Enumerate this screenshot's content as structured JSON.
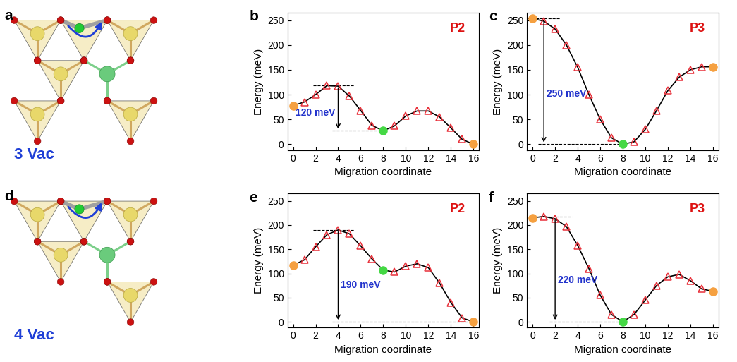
{
  "diagrams": [
    {
      "panel_label": "a",
      "label": "3 Vac"
    },
    {
      "panel_label": "d",
      "label": "4 Vac"
    }
  ],
  "chart_data": [
    {
      "panel_label": "b",
      "type": "line",
      "title": "P2",
      "x_label": "Migration coordinate",
      "y_label": "Energy (meV)",
      "x": [
        0,
        1,
        2,
        3,
        4,
        5,
        6,
        7,
        8,
        9,
        10,
        11,
        12,
        13,
        14,
        15,
        16
      ],
      "xlim": [
        -0.5,
        16.5
      ],
      "xticks": [
        0,
        2,
        4,
        6,
        8,
        10,
        12,
        14,
        16
      ],
      "ylim": [
        -12,
        265
      ],
      "yticks": [
        0,
        50,
        100,
        150,
        200,
        250
      ],
      "series": [
        {
          "type": "line",
          "color": "#000000",
          "line_style": "solid",
          "values": [
            78,
            85,
            100,
            118,
            117,
            97,
            68,
            38,
            27,
            37,
            57,
            67,
            67,
            55,
            33,
            10,
            0
          ]
        },
        {
          "type": "scatter",
          "marker": "triangle",
          "color": "#e8303a",
          "values": [
            null,
            85,
            100,
            118,
            117,
            97,
            68,
            38,
            null,
            37,
            57,
            67,
            67,
            55,
            33,
            10,
            null
          ]
        },
        {
          "type": "scatter",
          "marker": "circle",
          "color": "#f5a040",
          "values": [
            78,
            null,
            null,
            null,
            null,
            null,
            null,
            null,
            null,
            null,
            null,
            null,
            null,
            null,
            null,
            null,
            0
          ]
        },
        {
          "type": "scatter",
          "marker": "circle",
          "color": "#44d844",
          "values": [
            null,
            null,
            null,
            null,
            null,
            null,
            null,
            null,
            27,
            null,
            null,
            null,
            null,
            null,
            null,
            null,
            null
          ]
        }
      ],
      "annotations": [
        {
          "text": "120 meV",
          "x": 4,
          "y_from": 118,
          "y_to": 27
        }
      ]
    },
    {
      "panel_label": "c",
      "type": "line",
      "title": "P3",
      "x_label": "Migration coordinate",
      "y_label": "Energy (meV)",
      "x": [
        0,
        1,
        2,
        3,
        4,
        5,
        6,
        7,
        8,
        9,
        10,
        11,
        12,
        13,
        14,
        15,
        16
      ],
      "xlim": [
        -0.5,
        16.5
      ],
      "xticks": [
        0,
        2,
        4,
        6,
        8,
        10,
        12,
        14,
        16
      ],
      "ylim": [
        -12,
        265
      ],
      "yticks": [
        0,
        50,
        100,
        150,
        200,
        250
      ],
      "series": [
        {
          "type": "line",
          "color": "#000000",
          "line_style": "solid",
          "values": [
            253,
            248,
            232,
            200,
            155,
            100,
            50,
            13,
            0,
            5,
            30,
            68,
            108,
            135,
            150,
            156,
            156
          ]
        },
        {
          "type": "scatter",
          "marker": "triangle",
          "color": "#e8303a",
          "values": [
            null,
            248,
            232,
            200,
            155,
            100,
            50,
            13,
            null,
            5,
            30,
            68,
            108,
            135,
            150,
            156,
            null
          ]
        },
        {
          "type": "scatter",
          "marker": "circle",
          "color": "#f5a040",
          "values": [
            253,
            null,
            null,
            null,
            null,
            null,
            null,
            null,
            null,
            null,
            null,
            null,
            null,
            null,
            null,
            null,
            156
          ]
        },
        {
          "type": "scatter",
          "marker": "circle",
          "color": "#44d844",
          "values": [
            null,
            null,
            null,
            null,
            null,
            null,
            null,
            null,
            0,
            null,
            null,
            null,
            null,
            null,
            null,
            null,
            null
          ]
        }
      ],
      "annotations": [
        {
          "text": "250 meV",
          "x": 1,
          "y_from": 253,
          "y_to": 0
        }
      ]
    },
    {
      "panel_label": "e",
      "type": "line",
      "title": "P2",
      "x_label": "Migration coordinate",
      "y_label": "Energy (meV)",
      "x": [
        0,
        1,
        2,
        3,
        4,
        5,
        6,
        7,
        8,
        9,
        10,
        11,
        12,
        13,
        14,
        15,
        16
      ],
      "xlim": [
        -0.5,
        16.5
      ],
      "xticks": [
        0,
        2,
        4,
        6,
        8,
        10,
        12,
        14,
        16
      ],
      "ylim": [
        -12,
        265
      ],
      "yticks": [
        0,
        50,
        100,
        150,
        200,
        250
      ],
      "series": [
        {
          "type": "line",
          "color": "#000000",
          "line_style": "solid",
          "values": [
            117,
            128,
            155,
            180,
            190,
            182,
            157,
            130,
            107,
            103,
            115,
            120,
            112,
            80,
            40,
            8,
            0
          ]
        },
        {
          "type": "scatter",
          "marker": "triangle",
          "color": "#e8303a",
          "values": [
            null,
            128,
            155,
            180,
            190,
            182,
            157,
            130,
            null,
            103,
            115,
            120,
            112,
            80,
            40,
            8,
            null
          ]
        },
        {
          "type": "scatter",
          "marker": "circle",
          "color": "#f5a040",
          "values": [
            117,
            null,
            null,
            null,
            null,
            null,
            null,
            null,
            null,
            null,
            null,
            null,
            null,
            null,
            null,
            null,
            0
          ]
        },
        {
          "type": "scatter",
          "marker": "circle",
          "color": "#44d844",
          "values": [
            null,
            null,
            null,
            null,
            null,
            null,
            null,
            null,
            107,
            null,
            null,
            null,
            null,
            null,
            null,
            null,
            null
          ]
        }
      ],
      "annotations": [
        {
          "text": "190 meV",
          "x": 4,
          "y_from": 190,
          "y_to": 0
        }
      ]
    },
    {
      "panel_label": "f",
      "type": "line",
      "title": "P3",
      "x_label": "Migration coordinate",
      "y_label": "Energy (meV)",
      "x": [
        0,
        1,
        2,
        3,
        4,
        5,
        6,
        7,
        8,
        9,
        10,
        11,
        12,
        13,
        14,
        15,
        16
      ],
      "xlim": [
        -0.5,
        16.5
      ],
      "xticks": [
        0,
        2,
        4,
        6,
        8,
        10,
        12,
        14,
        16
      ],
      "ylim": [
        -12,
        265
      ],
      "yticks": [
        0,
        50,
        100,
        150,
        200,
        250
      ],
      "series": [
        {
          "type": "line",
          "color": "#000000",
          "line_style": "solid",
          "values": [
            215,
            218,
            213,
            197,
            158,
            110,
            55,
            15,
            0,
            15,
            45,
            75,
            93,
            98,
            85,
            68,
            63
          ]
        },
        {
          "type": "scatter",
          "marker": "triangle",
          "color": "#e8303a",
          "values": [
            null,
            218,
            213,
            197,
            158,
            110,
            55,
            15,
            null,
            15,
            45,
            75,
            93,
            98,
            85,
            68,
            null
          ]
        },
        {
          "type": "scatter",
          "marker": "circle",
          "color": "#f5a040",
          "values": [
            215,
            null,
            null,
            null,
            null,
            null,
            null,
            null,
            null,
            null,
            null,
            null,
            null,
            null,
            null,
            null,
            63
          ]
        },
        {
          "type": "scatter",
          "marker": "circle",
          "color": "#44d844",
          "values": [
            null,
            null,
            null,
            null,
            null,
            null,
            null,
            null,
            0,
            null,
            null,
            null,
            null,
            null,
            null,
            null,
            null
          ]
        }
      ],
      "annotations": [
        {
          "text": "220 meV",
          "x": 2,
          "y_from": 217,
          "y_to": 0
        }
      ]
    }
  ]
}
